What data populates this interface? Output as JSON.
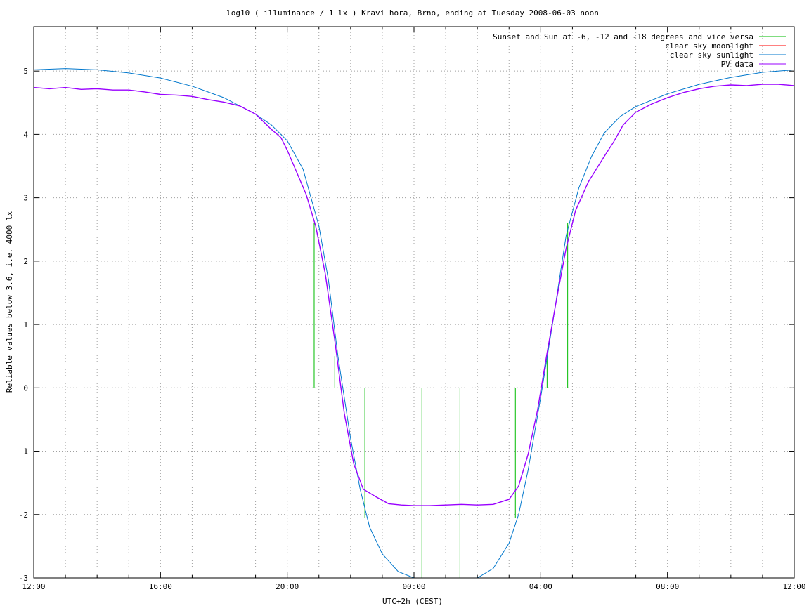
{
  "chart_data": {
    "type": "line",
    "title": "log10 ( illuminance / 1 lx ) Kravi hora, Brno, ending at Tuesday 2008-06-03 noon",
    "xlabel": "UTC+2h (CEST)",
    "ylabel": "Reliable values below 3.6, i.e. 4000 lx",
    "xlim": [
      12,
      36
    ],
    "ylim": [
      -3,
      5.7
    ],
    "grid": true,
    "legend_position": "top-right",
    "x_ticks": [
      {
        "value": 12,
        "label": "12:00"
      },
      {
        "value": 16,
        "label": "16:00"
      },
      {
        "value": 20,
        "label": "20:00"
      },
      {
        "value": 24,
        "label": "00:00"
      },
      {
        "value": 28,
        "label": "04:00"
      },
      {
        "value": 32,
        "label": "08:00"
      },
      {
        "value": 36,
        "label": "12:00"
      }
    ],
    "x_minor_ticks": [
      13,
      14,
      15,
      17,
      18,
      19,
      21,
      22,
      23,
      25,
      26,
      27,
      29,
      30,
      31,
      33,
      34,
      35
    ],
    "y_ticks": [
      {
        "value": -3,
        "label": "-3"
      },
      {
        "value": -2,
        "label": "-2"
      },
      {
        "value": -1,
        "label": "-1"
      },
      {
        "value": 0,
        "label": "0"
      },
      {
        "value": 1,
        "label": "1"
      },
      {
        "value": 2,
        "label": "2"
      },
      {
        "value": 3,
        "label": "3"
      },
      {
        "value": 4,
        "label": "4"
      },
      {
        "value": 5,
        "label": "5"
      }
    ],
    "series": [
      {
        "name": "Sunset and Sun at -6, -12 and -18 degrees and vice versa",
        "color": "#00bb00",
        "kind": "impulses",
        "points": [
          {
            "x": 20.85,
            "y0": 0,
            "y1": 2.6
          },
          {
            "x": 21.5,
            "y0": 0,
            "y1": 0.5
          },
          {
            "x": 22.45,
            "y0": 0,
            "y1": -2.05
          },
          {
            "x": 24.25,
            "y0": 0,
            "y1": -3
          },
          {
            "x": 25.45,
            "y0": 0,
            "y1": -3
          },
          {
            "x": 27.2,
            "y0": 0,
            "y1": -2.05
          },
          {
            "x": 28.2,
            "y0": 0,
            "y1": 0.5
          },
          {
            "x": 28.85,
            "y0": 0,
            "y1": 2.6
          }
        ]
      },
      {
        "name": "clear sky moonlight",
        "color": "#ff0000",
        "kind": "line",
        "points": []
      },
      {
        "name": "clear sky sunlight",
        "color": "#0077cc",
        "kind": "line",
        "points": [
          [
            12.0,
            5.02
          ],
          [
            13.0,
            5.04
          ],
          [
            14.0,
            5.02
          ],
          [
            15.0,
            4.97
          ],
          [
            16.0,
            4.89
          ],
          [
            17.0,
            4.76
          ],
          [
            18.0,
            4.58
          ],
          [
            19.0,
            4.32
          ],
          [
            19.5,
            4.15
          ],
          [
            20.0,
            3.9
          ],
          [
            20.5,
            3.45
          ],
          [
            21.0,
            2.55
          ],
          [
            21.3,
            1.7
          ],
          [
            21.6,
            0.5
          ],
          [
            22.0,
            -0.8
          ],
          [
            22.3,
            -1.6
          ],
          [
            22.6,
            -2.2
          ],
          [
            23.0,
            -2.62
          ],
          [
            23.5,
            -2.9
          ],
          [
            24.0,
            -3.0
          ],
          [
            26.0,
            -3.0
          ],
          [
            26.5,
            -2.85
          ],
          [
            27.0,
            -2.45
          ],
          [
            27.3,
            -2.0
          ],
          [
            27.6,
            -1.3
          ],
          [
            28.0,
            -0.15
          ],
          [
            28.4,
            1.1
          ],
          [
            28.8,
            2.4
          ],
          [
            29.2,
            3.15
          ],
          [
            29.6,
            3.65
          ],
          [
            30.0,
            4.02
          ],
          [
            30.5,
            4.28
          ],
          [
            31.0,
            4.44
          ],
          [
            32.0,
            4.64
          ],
          [
            33.0,
            4.79
          ],
          [
            34.0,
            4.9
          ],
          [
            35.0,
            4.98
          ],
          [
            36.0,
            5.02
          ]
        ]
      },
      {
        "name": "PV data",
        "color": "#9900ff",
        "kind": "line",
        "points": [
          [
            12.0,
            4.74
          ],
          [
            12.5,
            4.72
          ],
          [
            13.0,
            4.74
          ],
          [
            13.5,
            4.71
          ],
          [
            14.0,
            4.72
          ],
          [
            14.5,
            4.7
          ],
          [
            15.0,
            4.7
          ],
          [
            15.5,
            4.67
          ],
          [
            16.0,
            4.63
          ],
          [
            16.5,
            4.62
          ],
          [
            17.0,
            4.6
          ],
          [
            17.5,
            4.55
          ],
          [
            18.0,
            4.51
          ],
          [
            18.5,
            4.45
          ],
          [
            19.0,
            4.32
          ],
          [
            19.5,
            4.08
          ],
          [
            19.8,
            3.95
          ],
          [
            20.0,
            3.75
          ],
          [
            20.3,
            3.4
          ],
          [
            20.6,
            3.05
          ],
          [
            20.9,
            2.55
          ],
          [
            21.2,
            1.8
          ],
          [
            21.5,
            0.75
          ],
          [
            21.8,
            -0.4
          ],
          [
            22.1,
            -1.2
          ],
          [
            22.4,
            -1.6
          ],
          [
            22.8,
            -1.72
          ],
          [
            23.2,
            -1.83
          ],
          [
            23.6,
            -1.85
          ],
          [
            24.0,
            -1.86
          ],
          [
            24.5,
            -1.86
          ],
          [
            25.0,
            -1.85
          ],
          [
            25.5,
            -1.84
          ],
          [
            26.0,
            -1.85
          ],
          [
            26.5,
            -1.84
          ],
          [
            27.0,
            -1.76
          ],
          [
            27.3,
            -1.55
          ],
          [
            27.6,
            -1.05
          ],
          [
            27.9,
            -0.35
          ],
          [
            28.2,
            0.55
          ],
          [
            28.5,
            1.4
          ],
          [
            28.8,
            2.2
          ],
          [
            29.1,
            2.8
          ],
          [
            29.5,
            3.25
          ],
          [
            30.0,
            3.65
          ],
          [
            30.3,
            3.88
          ],
          [
            30.6,
            4.15
          ],
          [
            31.0,
            4.35
          ],
          [
            31.5,
            4.48
          ],
          [
            32.0,
            4.58
          ],
          [
            32.5,
            4.66
          ],
          [
            33.0,
            4.72
          ],
          [
            33.5,
            4.76
          ],
          [
            34.0,
            4.78
          ],
          [
            34.5,
            4.77
          ],
          [
            35.0,
            4.79
          ],
          [
            35.5,
            4.79
          ],
          [
            36.0,
            4.77
          ]
        ]
      }
    ]
  }
}
